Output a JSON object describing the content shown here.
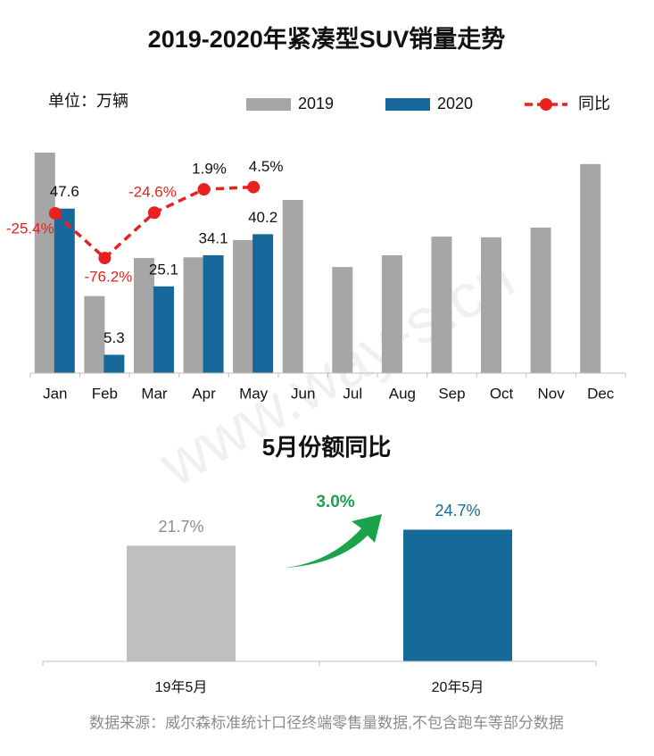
{
  "watermark": "www.way-s.cn",
  "footer": "数据来源：威尔森标准统计口径终端零售量数据,不包含跑车等部分数据",
  "chart_data": [
    {
      "type": "combo",
      "title": "2019-2020年紧凑型SUV销量走势",
      "unit_label": "单位：万辆",
      "categories": [
        "Jan",
        "Feb",
        "Mar",
        "Apr",
        "May",
        "Jun",
        "Jul",
        "Aug",
        "Sep",
        "Oct",
        "Nov",
        "Dec"
      ],
      "ylim": [
        0,
        70
      ],
      "y2lim": [
        -207,
        68
      ],
      "series": [
        {
          "name": "2019",
          "kind": "bar",
          "color": "#a6a6a6",
          "values": [
            63.8,
            22.3,
            33.3,
            33.5,
            38.5,
            50.1,
            30.7,
            34.1,
            39.5,
            39.3,
            42.1,
            60.5
          ]
        },
        {
          "name": "2020",
          "kind": "bar",
          "color": "#17699b",
          "values": [
            47.6,
            5.3,
            25.1,
            34.1,
            40.2,
            null,
            null,
            null,
            null,
            null,
            null,
            null
          ]
        },
        {
          "name": "同比",
          "kind": "line",
          "axis": "y2",
          "color": "#e8201f",
          "values": [
            -25.4,
            -76.2,
            -24.6,
            1.9,
            4.5,
            null,
            null,
            null,
            null,
            null,
            null,
            null
          ],
          "value_labels": [
            "-25.4%",
            "-76.2%",
            "-24.6%",
            "1.9%",
            "4.5%",
            null,
            null,
            null,
            null,
            null,
            null,
            null
          ]
        }
      ]
    },
    {
      "type": "bar",
      "title": "5月份额同比",
      "categories": [
        "19年5月",
        "20年5月"
      ],
      "values": [
        21.7,
        24.7
      ],
      "value_labels": [
        "21.7%",
        "24.7%"
      ],
      "colors": [
        "#bfbfbf",
        "#156a9a"
      ],
      "label_colors": [
        "#8c8c8c",
        "#156a9a"
      ],
      "ylim": [
        0,
        37
      ],
      "annotation": "3.0%"
    }
  ]
}
